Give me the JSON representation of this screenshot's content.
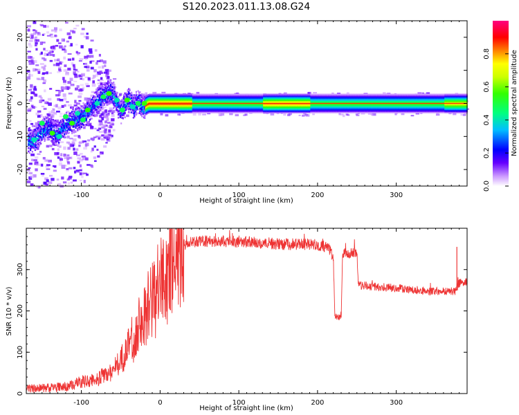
{
  "chart_data": [
    {
      "type": "heatmap",
      "title": "S120.2023.011.13.08.G24",
      "xlabel": "Height of straight line (km)",
      "ylabel": "Frequency (Hz)",
      "xlim": [
        -170,
        390
      ],
      "ylim": [
        -25,
        25
      ],
      "x_ticks": [
        "-100",
        "0",
        "100",
        "200",
        "300"
      ],
      "y_ticks": [
        "-20",
        "-10",
        "0",
        "10",
        "20"
      ],
      "colorbar": {
        "label": "Normalized spectral amplitude",
        "range": [
          0,
          1
        ],
        "ticks": [
          "0.0",
          "0.2",
          "0.4",
          "0.6",
          "0.8"
        ]
      },
      "ridge": [
        {
          "x": -160,
          "y": -11
        },
        {
          "x": -145,
          "y": -7
        },
        {
          "x": -130,
          "y": -9
        },
        {
          "x": -120,
          "y": -6
        },
        {
          "x": -110,
          "y": -5
        },
        {
          "x": -100,
          "y": -4
        },
        {
          "x": -90,
          "y": -2
        },
        {
          "x": -80,
          "y": 1
        },
        {
          "x": -70,
          "y": 3
        },
        {
          "x": -62,
          "y": 3.5
        },
        {
          "x": -55,
          "y": 0
        },
        {
          "x": -50,
          "y": -2.5
        },
        {
          "x": -42,
          "y": 1.5
        },
        {
          "x": -35,
          "y": -1
        },
        {
          "x": -28,
          "y": 0.5
        },
        {
          "x": -22,
          "y": -1
        },
        {
          "x": -15,
          "y": 0
        },
        {
          "x": 390,
          "y": 0
        }
      ]
    },
    {
      "type": "line",
      "xlabel": "Height of straight line (km)",
      "ylabel": "SNR (10 * v/v)",
      "xlim": [
        -170,
        390
      ],
      "ylim": [
        0,
        400
      ],
      "x_ticks": [
        "-100",
        "0",
        "100",
        "200",
        "300"
      ],
      "y_ticks": [
        "0",
        "100",
        "200",
        "300"
      ],
      "color": "#ee3333",
      "profile": [
        {
          "x": -170,
          "y": 12
        },
        {
          "x": -140,
          "y": 14
        },
        {
          "x": -115,
          "y": 18
        },
        {
          "x": -100,
          "y": 28
        },
        {
          "x": -80,
          "y": 35
        },
        {
          "x": -60,
          "y": 55
        },
        {
          "x": -45,
          "y": 95
        },
        {
          "x": -30,
          "y": 150
        },
        {
          "x": -15,
          "y": 210
        },
        {
          "x": 0,
          "y": 260
        },
        {
          "x": 10,
          "y": 300
        },
        {
          "x": 20,
          "y": 340
        },
        {
          "x": 30,
          "y": 362
        },
        {
          "x": 50,
          "y": 368
        },
        {
          "x": 100,
          "y": 368
        },
        {
          "x": 150,
          "y": 362
        },
        {
          "x": 200,
          "y": 360
        },
        {
          "x": 215,
          "y": 350
        },
        {
          "x": 220,
          "y": 330
        },
        {
          "x": 222,
          "y": 185
        },
        {
          "x": 230,
          "y": 185
        },
        {
          "x": 232,
          "y": 340
        },
        {
          "x": 250,
          "y": 340
        },
        {
          "x": 252,
          "y": 262
        },
        {
          "x": 300,
          "y": 255
        },
        {
          "x": 340,
          "y": 248
        },
        {
          "x": 375,
          "y": 248
        },
        {
          "x": 380,
          "y": 268
        },
        {
          "x": 390,
          "y": 268
        }
      ]
    }
  ]
}
